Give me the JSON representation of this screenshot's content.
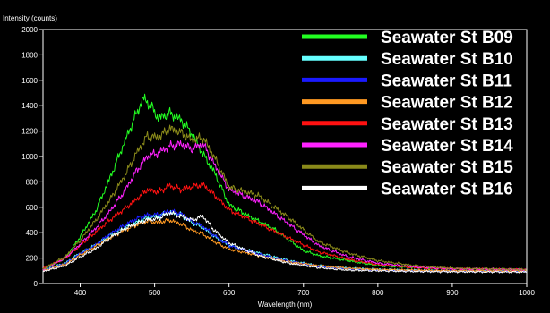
{
  "chart_data": {
    "type": "line",
    "xlabel": "Wavelength (nm)",
    "ylabel": "Intensity (counts)",
    "xlim": [
      350,
      1000
    ],
    "ylim": [
      0,
      2000
    ],
    "x_ticks": [
      400,
      500,
      600,
      700,
      800,
      900,
      1000
    ],
    "y_ticks": [
      0,
      200,
      400,
      600,
      800,
      1000,
      1200,
      1400,
      1600,
      1800,
      2000
    ],
    "grid": false,
    "legend": "top-right",
    "series": [
      {
        "name": "Seawater St B09",
        "color": "#22ff22",
        "x": [
          350,
          380,
          400,
          420,
          440,
          460,
          475,
          485,
          495,
          505,
          520,
          535,
          550,
          565,
          580,
          600,
          630,
          660,
          700,
          720,
          760,
          800,
          850,
          900,
          1000
        ],
        "y": [
          110,
          200,
          370,
          560,
          830,
          1120,
          1330,
          1460,
          1400,
          1300,
          1340,
          1290,
          1180,
          1020,
          880,
          620,
          520,
          430,
          260,
          220,
          180,
          140,
          125,
          115,
          110
        ]
      },
      {
        "name": "Seawater St B10",
        "color": "#66ffff",
        "x": [
          350,
          380,
          400,
          420,
          440,
          460,
          475,
          490,
          505,
          520,
          535,
          550,
          565,
          580,
          600,
          640,
          680,
          720,
          760,
          800,
          850,
          900,
          1000
        ],
        "y": [
          105,
          160,
          240,
          300,
          380,
          440,
          480,
          520,
          530,
          560,
          540,
          480,
          440,
          370,
          300,
          240,
          180,
          140,
          120,
          110,
          105,
          100,
          100
        ]
      },
      {
        "name": "Seawater St B11",
        "color": "#1a1aff",
        "x": [
          350,
          380,
          400,
          420,
          440,
          460,
          475,
          490,
          505,
          520,
          535,
          550,
          565,
          580,
          600,
          640,
          680,
          720,
          760,
          800,
          850,
          900,
          1000
        ],
        "y": [
          100,
          155,
          235,
          300,
          390,
          460,
          510,
          540,
          540,
          570,
          550,
          490,
          450,
          380,
          300,
          230,
          175,
          135,
          115,
          105,
          100,
          98,
          95
        ]
      },
      {
        "name": "Seawater St B12",
        "color": "#ff9922",
        "x": [
          350,
          380,
          400,
          420,
          440,
          460,
          475,
          490,
          505,
          520,
          535,
          550,
          565,
          580,
          600,
          640,
          680,
          720,
          760,
          800,
          850,
          900,
          1000
        ],
        "y": [
          100,
          150,
          225,
          290,
          360,
          420,
          460,
          490,
          480,
          500,
          470,
          420,
          390,
          330,
          270,
          220,
          170,
          140,
          120,
          110,
          105,
          100,
          100
        ]
      },
      {
        "name": "Seawater St B13",
        "color": "#ff1111",
        "x": [
          350,
          380,
          400,
          420,
          440,
          460,
          475,
          490,
          505,
          520,
          535,
          550,
          565,
          580,
          600,
          640,
          680,
          720,
          760,
          800,
          850,
          900,
          1000
        ],
        "y": [
          120,
          200,
          300,
          400,
          500,
          590,
          660,
          740,
          720,
          770,
          740,
          760,
          780,
          700,
          580,
          470,
          360,
          250,
          190,
          150,
          125,
          115,
          110
        ]
      },
      {
        "name": "Seawater St B14",
        "color": "#ff22ff",
        "x": [
          350,
          380,
          400,
          420,
          440,
          460,
          475,
          490,
          505,
          520,
          535,
          550,
          565,
          580,
          600,
          640,
          680,
          720,
          760,
          800,
          850,
          900,
          1000
        ],
        "y": [
          110,
          200,
          310,
          430,
          570,
          730,
          880,
          1000,
          1030,
          1080,
          1100,
          1060,
          1100,
          940,
          740,
          640,
          470,
          300,
          210,
          160,
          130,
          115,
          110
        ]
      },
      {
        "name": "Seawater St B15",
        "color": "#8a8a1a",
        "x": [
          350,
          380,
          400,
          420,
          440,
          460,
          475,
          490,
          505,
          520,
          535,
          550,
          565,
          580,
          600,
          640,
          680,
          720,
          760,
          800,
          850,
          900,
          1000
        ],
        "y": [
          115,
          210,
          340,
          490,
          660,
          850,
          1020,
          1160,
          1150,
          1220,
          1190,
          1130,
          1150,
          1000,
          760,
          690,
          520,
          330,
          240,
          180,
          140,
          120,
          110
        ]
      },
      {
        "name": "Seawater St B16",
        "color": "#ffffff",
        "x": [
          350,
          380,
          400,
          420,
          440,
          460,
          475,
          490,
          505,
          520,
          535,
          550,
          565,
          580,
          600,
          640,
          680,
          720,
          760,
          800,
          850,
          900,
          1000
        ],
        "y": [
          95,
          140,
          210,
          270,
          360,
          430,
          470,
          500,
          510,
          560,
          530,
          500,
          530,
          420,
          320,
          220,
          160,
          125,
          105,
          100,
          95,
          92,
          90
        ]
      }
    ]
  }
}
